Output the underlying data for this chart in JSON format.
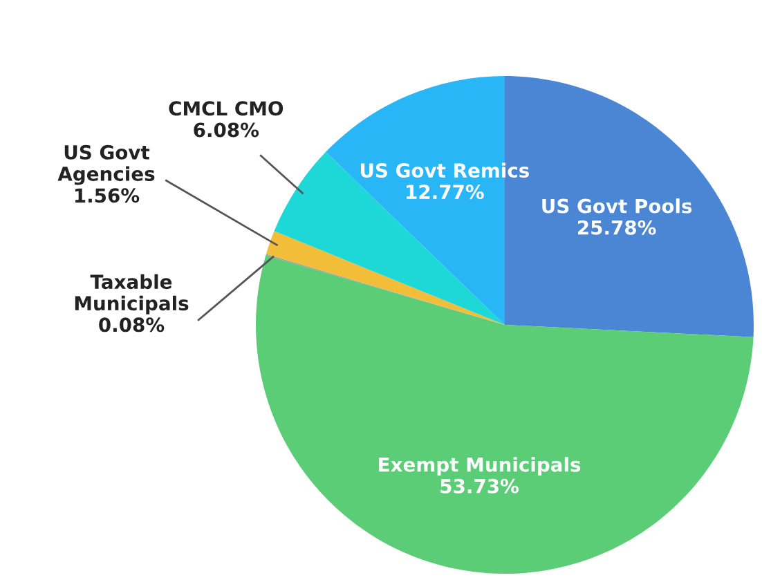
{
  "chart_data": {
    "type": "pie",
    "categories": [
      "US Govt Pools",
      "Exempt Municipals",
      "Taxable\nMunicipals",
      "US Govt\nAgencies",
      "CMCL CMO",
      "US Govt Remics"
    ],
    "values": [
      25.78,
      53.73,
      0.08,
      1.56,
      6.08,
      12.77
    ],
    "value_labels": [
      "25.78%",
      "53.73%",
      "0.08%",
      "1.56%",
      "6.08%",
      "12.77%"
    ],
    "colors": [
      "#4a86d4",
      "#5ccd77",
      "#9e9e9e",
      "#f2be3a",
      "#1ed8d8",
      "#29b6f6"
    ],
    "legend": false
  }
}
